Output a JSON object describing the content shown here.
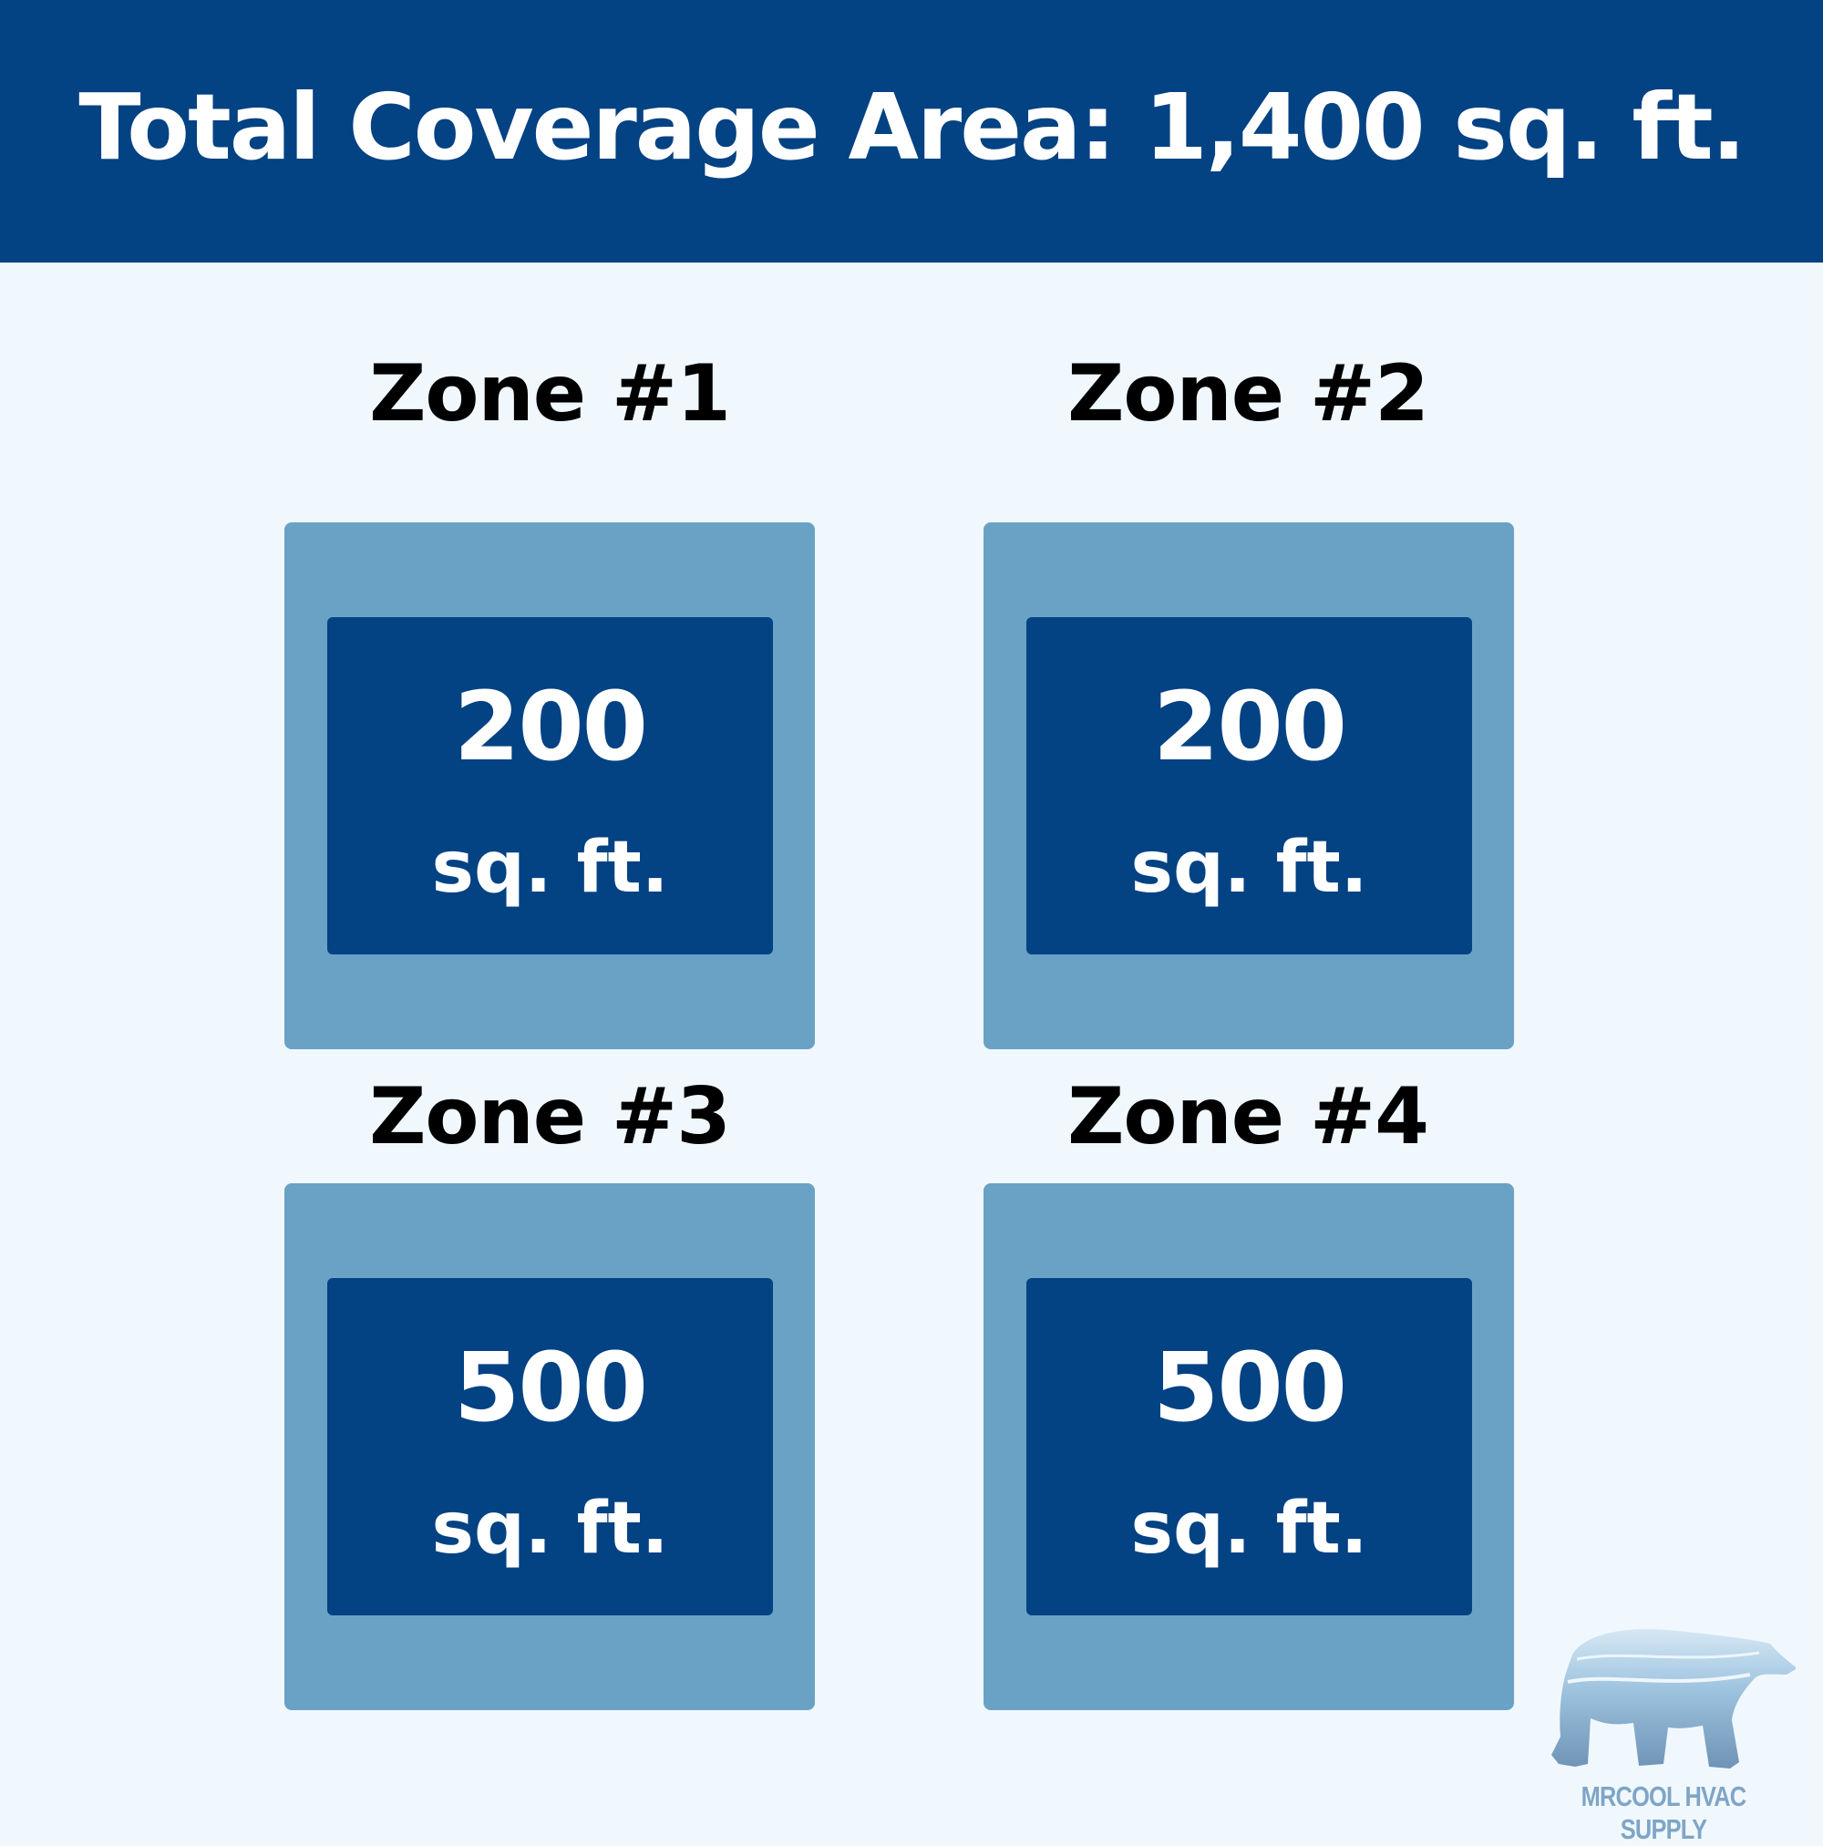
{
  "header": {
    "title": "Total Coverage Area: 1,400 sq. ft."
  },
  "zones": [
    {
      "label": "Zone #1",
      "value": "200",
      "unit": "sq. ft."
    },
    {
      "label": "Zone #2",
      "value": "200",
      "unit": "sq. ft."
    },
    {
      "label": "Zone #3",
      "value": "500",
      "unit": "sq. ft."
    },
    {
      "label": "Zone #4",
      "value": "500",
      "unit": "sq. ft."
    }
  ],
  "logo": {
    "text": "MRCOOL HVAC SUPPLY",
    "icon": "polar-bear-icon"
  },
  "colors": {
    "primary": "#034283",
    "secondary": "#6aa2c6",
    "background": "#f0f8fe"
  }
}
